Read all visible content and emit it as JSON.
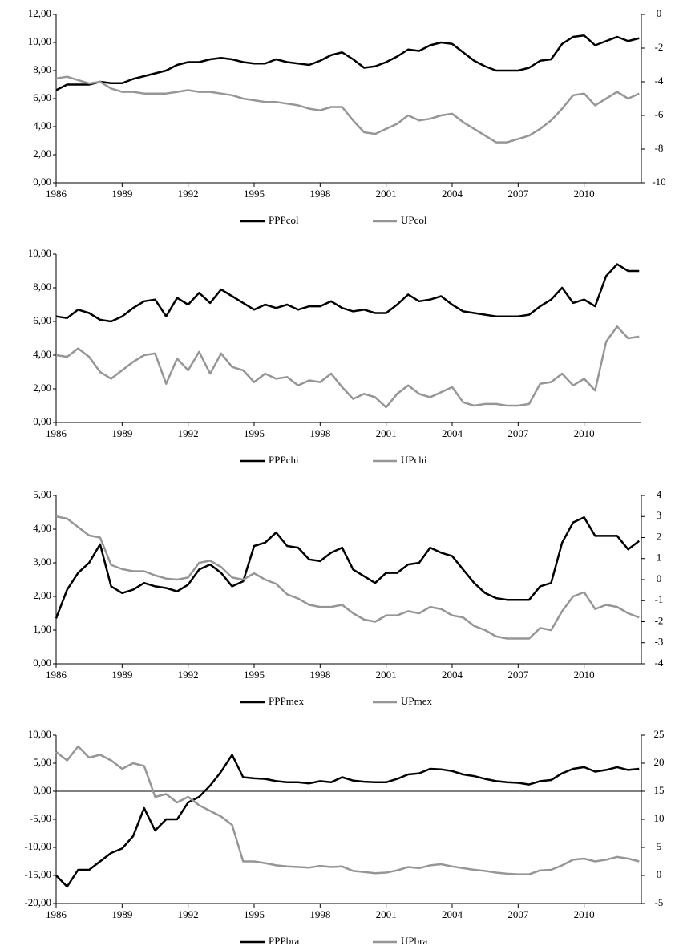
{
  "chart_data": [
    {
      "type": "line",
      "x": [
        1986,
        1986.5,
        1987,
        1987.5,
        1988,
        1988.5,
        1989,
        1989.5,
        1990,
        1990.5,
        1991,
        1991.5,
        1992,
        1992.5,
        1993,
        1993.5,
        1994,
        1994.5,
        1995,
        1995.5,
        1996,
        1996.5,
        1997,
        1997.5,
        1998,
        1998.5,
        1999,
        1999.5,
        2000,
        2000.5,
        2001,
        2001.5,
        2002,
        2002.5,
        2003,
        2003.5,
        2004,
        2004.5,
        2005,
        2005.5,
        2006,
        2006.5,
        2007,
        2007.5,
        2008,
        2008.5,
        2009,
        2009.5,
        2010,
        2010.5,
        2011,
        2011.5,
        2012,
        2012.5
      ],
      "xlim": [
        1986,
        2012.6
      ],
      "xticks": [
        1986,
        1989,
        1992,
        1995,
        1998,
        2001,
        2004,
        2007,
        2010
      ],
      "ylim": [
        0,
        12
      ],
      "yticks": [
        {
          "value": 0,
          "label": "0,00"
        },
        {
          "value": 2,
          "label": "2,00"
        },
        {
          "value": 4,
          "label": "4,00"
        },
        {
          "value": 6,
          "label": "6,00"
        },
        {
          "value": 8,
          "label": "8,00"
        },
        {
          "value": 10,
          "label": "10,00"
        },
        {
          "value": 12,
          "label": "12,00"
        }
      ],
      "y2lim": [
        -10,
        0
      ],
      "y2ticks": [
        -10,
        -8,
        -6,
        -4,
        -2,
        0
      ],
      "series": [
        {
          "name": "PPPcol",
          "color": "#000000",
          "values": [
            6.6,
            7.0,
            7.0,
            7.0,
            7.2,
            7.1,
            7.1,
            7.4,
            7.6,
            7.8,
            8.0,
            8.4,
            8.6,
            8.6,
            8.8,
            8.9,
            8.8,
            8.6,
            8.5,
            8.5,
            8.8,
            8.6,
            8.5,
            8.4,
            8.7,
            9.1,
            9.3,
            8.8,
            8.2,
            8.3,
            8.6,
            9.0,
            9.5,
            9.4,
            9.8,
            10.0,
            9.9,
            9.3,
            8.7,
            8.3,
            8.0,
            8.0,
            8.0,
            8.2,
            8.7,
            8.8,
            9.9,
            10.4,
            10.5,
            9.8,
            10.1,
            10.4,
            10.1,
            10.3
          ]
        },
        {
          "name": "UPcol",
          "color": "#969696",
          "axis": "y2",
          "values": [
            -3.8,
            -3.7,
            -3.9,
            -4.1,
            -4.0,
            -4.4,
            -4.6,
            -4.6,
            -4.7,
            -4.7,
            -4.7,
            -4.6,
            -4.5,
            -4.6,
            -4.6,
            -4.7,
            -4.8,
            -5.0,
            -5.1,
            -5.2,
            -5.2,
            -5.3,
            -5.4,
            -5.6,
            -5.7,
            -5.5,
            -5.5,
            -6.3,
            -7.0,
            -7.1,
            -6.8,
            -6.5,
            -6.0,
            -6.3,
            -6.2,
            -6.0,
            -5.9,
            -6.4,
            -6.8,
            -7.2,
            -7.6,
            -7.6,
            -7.4,
            -7.2,
            -6.8,
            -6.3,
            -5.6,
            -4.8,
            -4.7,
            -5.4,
            -5.0,
            -4.6,
            -5.0,
            -4.7
          ]
        }
      ]
    },
    {
      "type": "line",
      "x": [
        1986,
        1986.5,
        1987,
        1987.5,
        1988,
        1988.5,
        1989,
        1989.5,
        1990,
        1990.5,
        1991,
        1991.5,
        1992,
        1992.5,
        1993,
        1993.5,
        1994,
        1994.5,
        1995,
        1995.5,
        1996,
        1996.5,
        1997,
        1997.5,
        1998,
        1998.5,
        1999,
        1999.5,
        2000,
        2000.5,
        2001,
        2001.5,
        2002,
        2002.5,
        2003,
        2003.5,
        2004,
        2004.5,
        2005,
        2005.5,
        2006,
        2006.5,
        2007,
        2007.5,
        2008,
        2008.5,
        2009,
        2009.5,
        2010,
        2010.5,
        2011,
        2011.5,
        2012,
        2012.5
      ],
      "xlim": [
        1986,
        2012.6
      ],
      "xticks": [
        1986,
        1989,
        1992,
        1995,
        1998,
        2001,
        2004,
        2007,
        2010
      ],
      "ylim": [
        0,
        10
      ],
      "yticks": [
        {
          "value": 0,
          "label": "0,00"
        },
        {
          "value": 2,
          "label": "2,00"
        },
        {
          "value": 4,
          "label": "4,00"
        },
        {
          "value": 6,
          "label": "6,00"
        },
        {
          "value": 8,
          "label": "8,00"
        },
        {
          "value": 10,
          "label": "10,00"
        }
      ],
      "series": [
        {
          "name": "PPPchi",
          "color": "#000000",
          "values": [
            6.3,
            6.2,
            6.7,
            6.5,
            6.1,
            6.0,
            6.3,
            6.8,
            7.2,
            7.3,
            6.3,
            7.4,
            7.0,
            7.7,
            7.1,
            7.9,
            7.5,
            7.1,
            6.7,
            7.0,
            6.8,
            7.0,
            6.7,
            6.9,
            6.9,
            7.2,
            6.8,
            6.6,
            6.7,
            6.5,
            6.5,
            7.0,
            7.6,
            7.2,
            7.3,
            7.5,
            7.0,
            6.6,
            6.5,
            6.4,
            6.3,
            6.3,
            6.3,
            6.4,
            6.9,
            7.3,
            8.0,
            7.1,
            7.3,
            6.9,
            8.7,
            9.4,
            9.0,
            9.0
          ]
        },
        {
          "name": "UPchi",
          "color": "#969696",
          "values": [
            4.0,
            3.9,
            4.4,
            3.9,
            3.0,
            2.6,
            3.1,
            3.6,
            4.0,
            4.1,
            2.3,
            3.8,
            3.1,
            4.2,
            2.9,
            4.1,
            3.3,
            3.1,
            2.4,
            2.9,
            2.6,
            2.7,
            2.2,
            2.5,
            2.4,
            2.9,
            2.1,
            1.4,
            1.7,
            1.5,
            0.9,
            1.7,
            2.2,
            1.7,
            1.5,
            1.8,
            2.1,
            1.2,
            1.0,
            1.1,
            1.1,
            1.0,
            1.0,
            1.1,
            2.3,
            2.4,
            2.9,
            2.2,
            2.6,
            1.9,
            4.8,
            5.7,
            5.0,
            5.1
          ]
        }
      ]
    },
    {
      "type": "line",
      "x": [
        1986,
        1986.5,
        1987,
        1987.5,
        1988,
        1988.5,
        1989,
        1989.5,
        1990,
        1990.5,
        1991,
        1991.5,
        1992,
        1992.5,
        1993,
        1993.5,
        1994,
        1994.5,
        1995,
        1995.5,
        1996,
        1996.5,
        1997,
        1997.5,
        1998,
        1998.5,
        1999,
        1999.5,
        2000,
        2000.5,
        2001,
        2001.5,
        2002,
        2002.5,
        2003,
        2003.5,
        2004,
        2004.5,
        2005,
        2005.5,
        2006,
        2006.5,
        2007,
        2007.5,
        2008,
        2008.5,
        2009,
        2009.5,
        2010,
        2010.5,
        2011,
        2011.5,
        2012,
        2012.5
      ],
      "xlim": [
        1986,
        2012.6
      ],
      "xticks": [
        1986,
        1989,
        1992,
        1995,
        1998,
        2001,
        2004,
        2007,
        2010
      ],
      "ylim": [
        0,
        5
      ],
      "yticks": [
        {
          "value": 0,
          "label": "0,00"
        },
        {
          "value": 1,
          "label": "1,00"
        },
        {
          "value": 2,
          "label": "2,00"
        },
        {
          "value": 3,
          "label": "3,00"
        },
        {
          "value": 4,
          "label": "4,00"
        },
        {
          "value": 5,
          "label": "5,00"
        }
      ],
      "y2lim": [
        -4,
        4
      ],
      "y2ticks": [
        -4,
        -3,
        -2,
        -1,
        0,
        1,
        2,
        3,
        4
      ],
      "series": [
        {
          "name": "PPPmex",
          "color": "#000000",
          "values": [
            1.35,
            2.2,
            2.7,
            3.0,
            3.55,
            2.3,
            2.1,
            2.2,
            2.4,
            2.3,
            2.25,
            2.15,
            2.35,
            2.8,
            2.95,
            2.7,
            2.3,
            2.45,
            3.5,
            3.6,
            3.9,
            3.5,
            3.45,
            3.1,
            3.05,
            3.3,
            3.45,
            2.8,
            2.6,
            2.4,
            2.7,
            2.7,
            2.95,
            3.0,
            3.45,
            3.3,
            3.2,
            2.8,
            2.4,
            2.1,
            1.95,
            1.9,
            1.9,
            1.9,
            2.3,
            2.4,
            3.6,
            4.2,
            4.35,
            3.8,
            3.8,
            3.8,
            3.4,
            3.65
          ]
        },
        {
          "name": "UPmex",
          "color": "#969696",
          "axis": "y2",
          "values": [
            3.0,
            2.9,
            2.5,
            2.1,
            2.0,
            0.7,
            0.5,
            0.4,
            0.4,
            0.2,
            0.05,
            0.0,
            0.1,
            0.8,
            0.9,
            0.6,
            0.1,
            0.0,
            0.3,
            0.0,
            -0.2,
            -0.7,
            -0.9,
            -1.2,
            -1.3,
            -1.3,
            -1.2,
            -1.6,
            -1.9,
            -2.0,
            -1.7,
            -1.7,
            -1.5,
            -1.6,
            -1.3,
            -1.4,
            -1.7,
            -1.8,
            -2.2,
            -2.4,
            -2.7,
            -2.8,
            -2.8,
            -2.8,
            -2.3,
            -2.4,
            -1.5,
            -0.8,
            -0.6,
            -1.4,
            -1.2,
            -1.3,
            -1.6,
            -1.8
          ]
        }
      ]
    },
    {
      "type": "line",
      "x": [
        1986,
        1986.5,
        1987,
        1987.5,
        1988,
        1988.5,
        1989,
        1989.5,
        1990,
        1990.5,
        1991,
        1991.5,
        1992,
        1992.5,
        1993,
        1993.5,
        1994,
        1994.5,
        1995,
        1995.5,
        1996,
        1996.5,
        1997,
        1997.5,
        1998,
        1998.5,
        1999,
        1999.5,
        2000,
        2000.5,
        2001,
        2001.5,
        2002,
        2002.5,
        2003,
        2003.5,
        2004,
        2004.5,
        2005,
        2005.5,
        2006,
        2006.5,
        2007,
        2007.5,
        2008,
        2008.5,
        2009,
        2009.5,
        2010,
        2010.5,
        2011,
        2011.5,
        2012,
        2012.5
      ],
      "xlim": [
        1986,
        2012.6
      ],
      "xticks": [
        1986,
        1989,
        1992,
        1995,
        1998,
        2001,
        2004,
        2007,
        2010
      ],
      "ylim": [
        -20,
        10
      ],
      "yticks": [
        {
          "value": -20,
          "label": "-20,00"
        },
        {
          "value": -15,
          "label": "-15,00"
        },
        {
          "value": -10,
          "label": "-10,00"
        },
        {
          "value": -5,
          "label": "-5,00"
        },
        {
          "value": 0,
          "label": "0,00"
        },
        {
          "value": 5,
          "label": "5,00"
        },
        {
          "value": 10,
          "label": "10,00"
        }
      ],
      "y2lim": [
        -5,
        25
      ],
      "y2ticks": [
        -5,
        0,
        5,
        10,
        15,
        20,
        25
      ],
      "series": [
        {
          "name": "PPPbra",
          "color": "#000000",
          "values": [
            -15,
            -17,
            -14,
            -14,
            -12.5,
            -11,
            -10.2,
            -8,
            -3,
            -7,
            -5,
            -5,
            -2,
            -1,
            1,
            3.5,
            6.5,
            2.5,
            2.3,
            2.2,
            1.8,
            1.6,
            1.6,
            1.4,
            1.8,
            1.6,
            2.5,
            1.9,
            1.7,
            1.6,
            1.6,
            2.2,
            3.0,
            3.2,
            4.0,
            3.9,
            3.6,
            3.0,
            2.7,
            2.2,
            1.8,
            1.6,
            1.5,
            1.2,
            1.8,
            2.0,
            3.2,
            4.0,
            4.3,
            3.5,
            3.8,
            4.3,
            3.8,
            4.0
          ]
        },
        {
          "name": "UPbra",
          "color": "#969696",
          "axis": "y2",
          "values": [
            22,
            20.5,
            23,
            21,
            21.5,
            20.5,
            19,
            20,
            19.5,
            14,
            14.5,
            13,
            14,
            12.5,
            11.5,
            10.5,
            9,
            2.5,
            2.5,
            2.2,
            1.8,
            1.6,
            1.5,
            1.4,
            1.7,
            1.5,
            1.6,
            0.8,
            0.6,
            0.4,
            0.5,
            0.9,
            1.5,
            1.3,
            1.8,
            2.0,
            1.6,
            1.3,
            1.0,
            0.8,
            0.5,
            0.3,
            0.2,
            0.2,
            0.9,
            1.0,
            1.8,
            2.8,
            3.0,
            2.5,
            2.8,
            3.3,
            3.0,
            2.5
          ]
        }
      ]
    }
  ]
}
